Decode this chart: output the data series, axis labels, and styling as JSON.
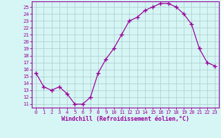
{
  "x": [
    0,
    1,
    2,
    3,
    4,
    5,
    6,
    7,
    8,
    9,
    10,
    11,
    12,
    13,
    14,
    15,
    16,
    17,
    18,
    19,
    20,
    21,
    22,
    23
  ],
  "y": [
    15.5,
    13.5,
    13.0,
    13.5,
    12.5,
    11.0,
    11.0,
    12.0,
    15.5,
    17.5,
    19.0,
    21.0,
    23.0,
    23.5,
    24.5,
    25.0,
    25.5,
    25.5,
    25.0,
    24.0,
    22.5,
    19.0,
    17.0,
    16.5
  ],
  "xlim": [
    -0.5,
    23.5
  ],
  "ylim": [
    10.5,
    25.8
  ],
  "yticks": [
    11,
    12,
    13,
    14,
    15,
    16,
    17,
    18,
    19,
    20,
    21,
    22,
    23,
    24,
    25
  ],
  "xticks": [
    0,
    1,
    2,
    3,
    4,
    5,
    6,
    7,
    8,
    9,
    10,
    11,
    12,
    13,
    14,
    15,
    16,
    17,
    18,
    19,
    20,
    21,
    22,
    23
  ],
  "xlabel": "Windchill (Refroidissement éolien,°C)",
  "line_color": "#990099",
  "marker": "+",
  "bg_color": "#d6f5f5",
  "grid_color": "#aacccc",
  "axis_color": "#990099",
  "tick_color": "#990099",
  "tick_fontsize": 5.2,
  "xlabel_fontsize": 6.0
}
